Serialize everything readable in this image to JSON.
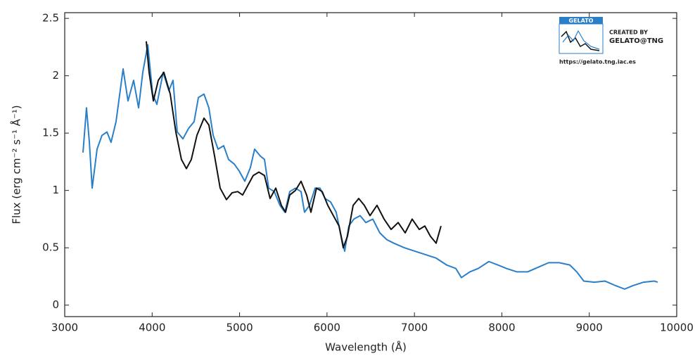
{
  "chart_data": {
    "type": "line",
    "x_label": "Wavelength (Å)",
    "y_label": "Flux (erg cm⁻² s⁻¹ Å⁻¹)",
    "xlim": [
      3000,
      10000
    ],
    "xticks": [
      3000,
      4000,
      5000,
      6000,
      7000,
      8000,
      9000,
      10000
    ],
    "ylim": [
      -0.1,
      2.55
    ],
    "yticks": [
      0,
      0.5,
      1,
      1.5,
      2,
      2.5
    ],
    "grid": false,
    "annotations": [
      "GELATO",
      "CREATED BY",
      "GELATO@TNG",
      "https://gelato.tng.iac.es"
    ],
    "series": [
      {
        "color": "#2a7fc9",
        "x": [
          3209,
          3249,
          3282,
          3314,
          3370,
          3426,
          3483,
          3530,
          3587,
          3668,
          3724,
          3788,
          3845,
          3893,
          3950,
          4006,
          4054,
          4126,
          4191,
          4239,
          4287,
          4352,
          4416,
          4480,
          4529,
          4593,
          4649,
          4698,
          4754,
          4818,
          4874,
          4939,
          4995,
          5060,
          5124,
          5172,
          5237,
          5285,
          5333,
          5397,
          5462,
          5518,
          5574,
          5639,
          5703,
          5743,
          5800,
          5864,
          5920,
          5977,
          6041,
          6105,
          6154,
          6202,
          6250,
          6307,
          6379,
          6444,
          6524,
          6604,
          6685,
          6765,
          6886,
          7006,
          7127,
          7248,
          7368,
          7473,
          7537,
          7634,
          7730,
          7851,
          7956,
          8052,
          8173,
          8294,
          8414,
          8535,
          8656,
          8777,
          8857,
          8937,
          9058,
          9179,
          9300,
          9404,
          9500,
          9621,
          9742,
          9782
        ],
        "values": [
          1.33,
          1.72,
          1.42,
          1.02,
          1.36,
          1.48,
          1.51,
          1.42,
          1.6,
          2.06,
          1.78,
          1.96,
          1.72,
          2.03,
          2.27,
          1.84,
          1.75,
          2.03,
          1.87,
          1.96,
          1.51,
          1.45,
          1.54,
          1.6,
          1.81,
          1.84,
          1.72,
          1.48,
          1.36,
          1.39,
          1.27,
          1.23,
          1.17,
          1.08,
          1.2,
          1.36,
          1.3,
          1.27,
          1.02,
          0.99,
          0.87,
          0.81,
          0.99,
          1.02,
          0.99,
          0.81,
          0.87,
          1.02,
          1.02,
          0.93,
          0.9,
          0.81,
          0.63,
          0.47,
          0.69,
          0.75,
          0.78,
          0.72,
          0.75,
          0.63,
          0.57,
          0.54,
          0.5,
          0.47,
          0.44,
          0.41,
          0.35,
          0.32,
          0.24,
          0.29,
          0.32,
          0.38,
          0.35,
          0.32,
          0.29,
          0.29,
          0.33,
          0.37,
          0.37,
          0.35,
          0.29,
          0.21,
          0.2,
          0.21,
          0.17,
          0.14,
          0.17,
          0.2,
          0.21,
          0.2
        ]
      },
      {
        "color": "#111111",
        "x": [
          3933,
          3965,
          4014,
          4070,
          4134,
          4207,
          4271,
          4335,
          4392,
          4448,
          4512,
          4593,
          4649,
          4714,
          4778,
          4850,
          4915,
          4979,
          5035,
          5092,
          5156,
          5221,
          5285,
          5349,
          5414,
          5478,
          5526,
          5574,
          5639,
          5703,
          5767,
          5816,
          5880,
          5945,
          6009,
          6073,
          6138,
          6186,
          6234,
          6299,
          6363,
          6427,
          6492,
          6572,
          6653,
          6733,
          6814,
          6894,
          6974,
          7055,
          7119,
          7183,
          7248,
          7304
        ],
        "values": [
          2.3,
          2.03,
          1.78,
          1.96,
          2.03,
          1.84,
          1.51,
          1.27,
          1.19,
          1.27,
          1.48,
          1.63,
          1.57,
          1.3,
          1.02,
          0.92,
          0.98,
          0.99,
          0.96,
          1.04,
          1.13,
          1.16,
          1.13,
          0.93,
          1.02,
          0.87,
          0.81,
          0.96,
          1.0,
          1.08,
          0.96,
          0.81,
          1.02,
          0.99,
          0.87,
          0.78,
          0.69,
          0.5,
          0.6,
          0.87,
          0.93,
          0.87,
          0.78,
          0.87,
          0.75,
          0.66,
          0.72,
          0.63,
          0.75,
          0.66,
          0.69,
          0.6,
          0.54,
          0.69
        ]
      }
    ]
  }
}
